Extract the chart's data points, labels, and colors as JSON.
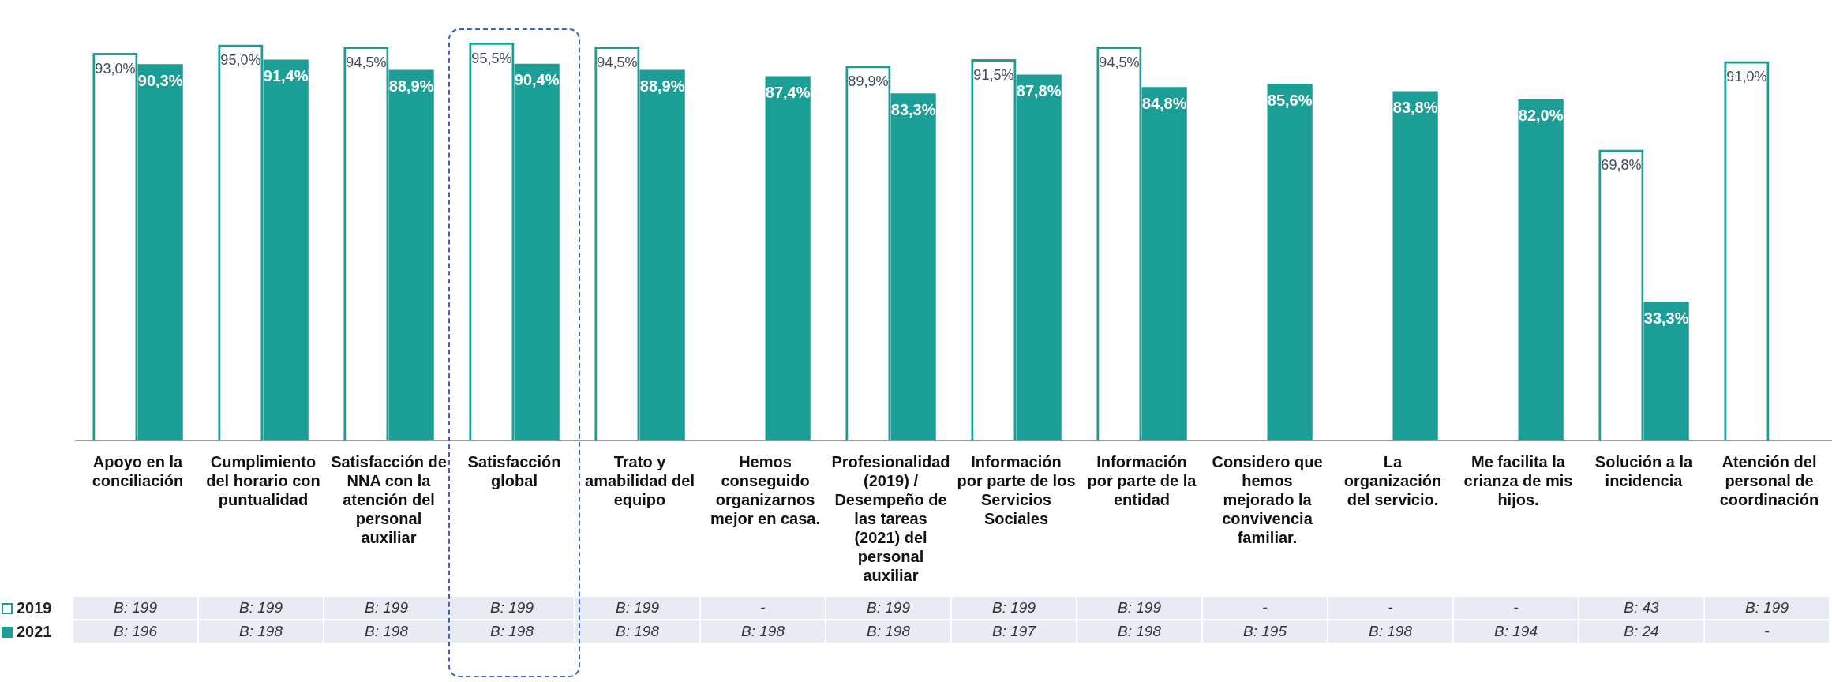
{
  "chart_data": {
    "type": "bar",
    "categories": [
      "Apoyo en la conciliación",
      "Cumplimiento del horario con puntualidad",
      "Satisfacción de NNA con la atención del personal auxiliar",
      "Satisfacción global",
      "Trato y amabilidad del equipo",
      "Hemos conseguido organizarnos mejor en casa.",
      "Profesionalidad (2019) / Desempeño de las tareas (2021) del personal auxiliar",
      "Información por parte de los Servicios Sociales",
      "Información por parte de la entidad",
      "Considero que hemos mejorado la convivencia familiar.",
      "La organización del servicio.",
      "Me facilita la crianza de mis hijos.",
      "Solución a la incidencia",
      "Atención del personal de coordinación"
    ],
    "series": [
      {
        "name": "2019",
        "color": "#1a9e96",
        "values": [
          93.0,
          95.0,
          94.5,
          95.5,
          94.5,
          null,
          89.9,
          91.5,
          94.5,
          null,
          null,
          null,
          69.8,
          91.0
        ],
        "value_labels": [
          "93,0%",
          "95,0%",
          "94,5%",
          "95,5%",
          "94,5%",
          null,
          "89,9%",
          "91,5%",
          "94,5%",
          null,
          null,
          null,
          "69,8%",
          "91,0%"
        ]
      },
      {
        "name": "2021",
        "color": "#1a9e96",
        "values": [
          90.3,
          91.4,
          88.9,
          90.4,
          88.9,
          87.4,
          83.3,
          87.8,
          84.8,
          85.6,
          83.8,
          82.0,
          33.3,
          null
        ],
        "value_labels": [
          "90,3%",
          "91,4%",
          "88,9%",
          "90,4%",
          "88,9%",
          "87,4%",
          "83,3%",
          "87,8%",
          "84,8%",
          "85,6%",
          "83,8%",
          "82,0%",
          "33,3%",
          null
        ]
      }
    ],
    "grid": false,
    "legend": "bottom left",
    "annotations": [
      "B: 199",
      "B: 199",
      "B: 199",
      "B: 199",
      "B: 199",
      "-",
      "B: 199",
      "B: 199",
      "B: 199",
      "-",
      "-",
      "-",
      "B: 43",
      "B: 199",
      "B: 196",
      "B: 198",
      "B: 198",
      "B: 198",
      "B: 198",
      "B: 198",
      "B: 198",
      "B: 197",
      "B: 198",
      "B: 195",
      "B: 198",
      "B: 194",
      "B: 24",
      "-"
    ]
  }
}
